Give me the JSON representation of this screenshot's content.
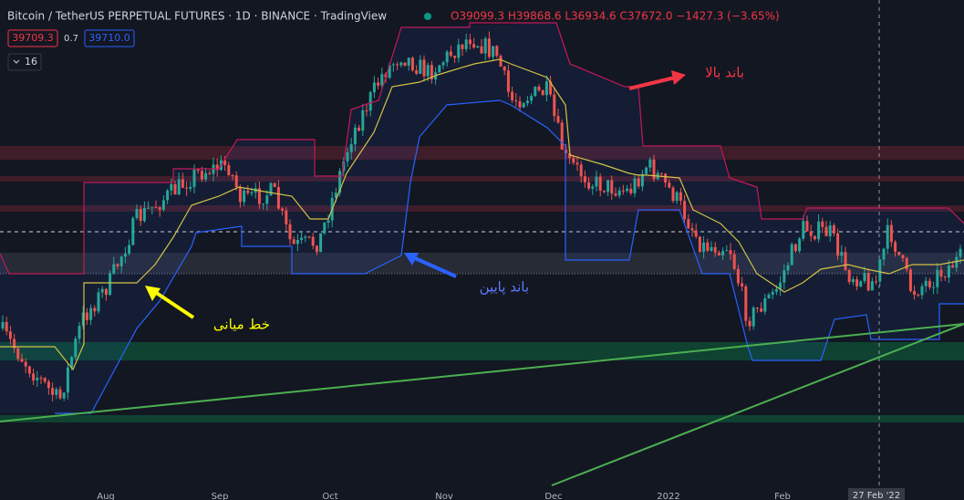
{
  "header": {
    "title": "Bitcoin / TetherUS PERPETUAL FUTURES · 1D · BINANCE · TradingView",
    "ohlc": "O39099.3 H39868.6 L36934.6 C37672.0 −1427.3 (−3.65%)",
    "bid": "39709.3",
    "spread": "0.7",
    "ask": "39710.0",
    "indicator_count": "16"
  },
  "x_axis": {
    "labels": [
      "Aug",
      "Sep",
      "Oct",
      "Nov",
      "Dec",
      "2022",
      "Feb"
    ],
    "cursor_label": "27 Feb '22"
  },
  "annotations": {
    "upper_band": "باند بالا",
    "lower_band": "باند پایین",
    "middle_line": "خط میانی"
  }
}
